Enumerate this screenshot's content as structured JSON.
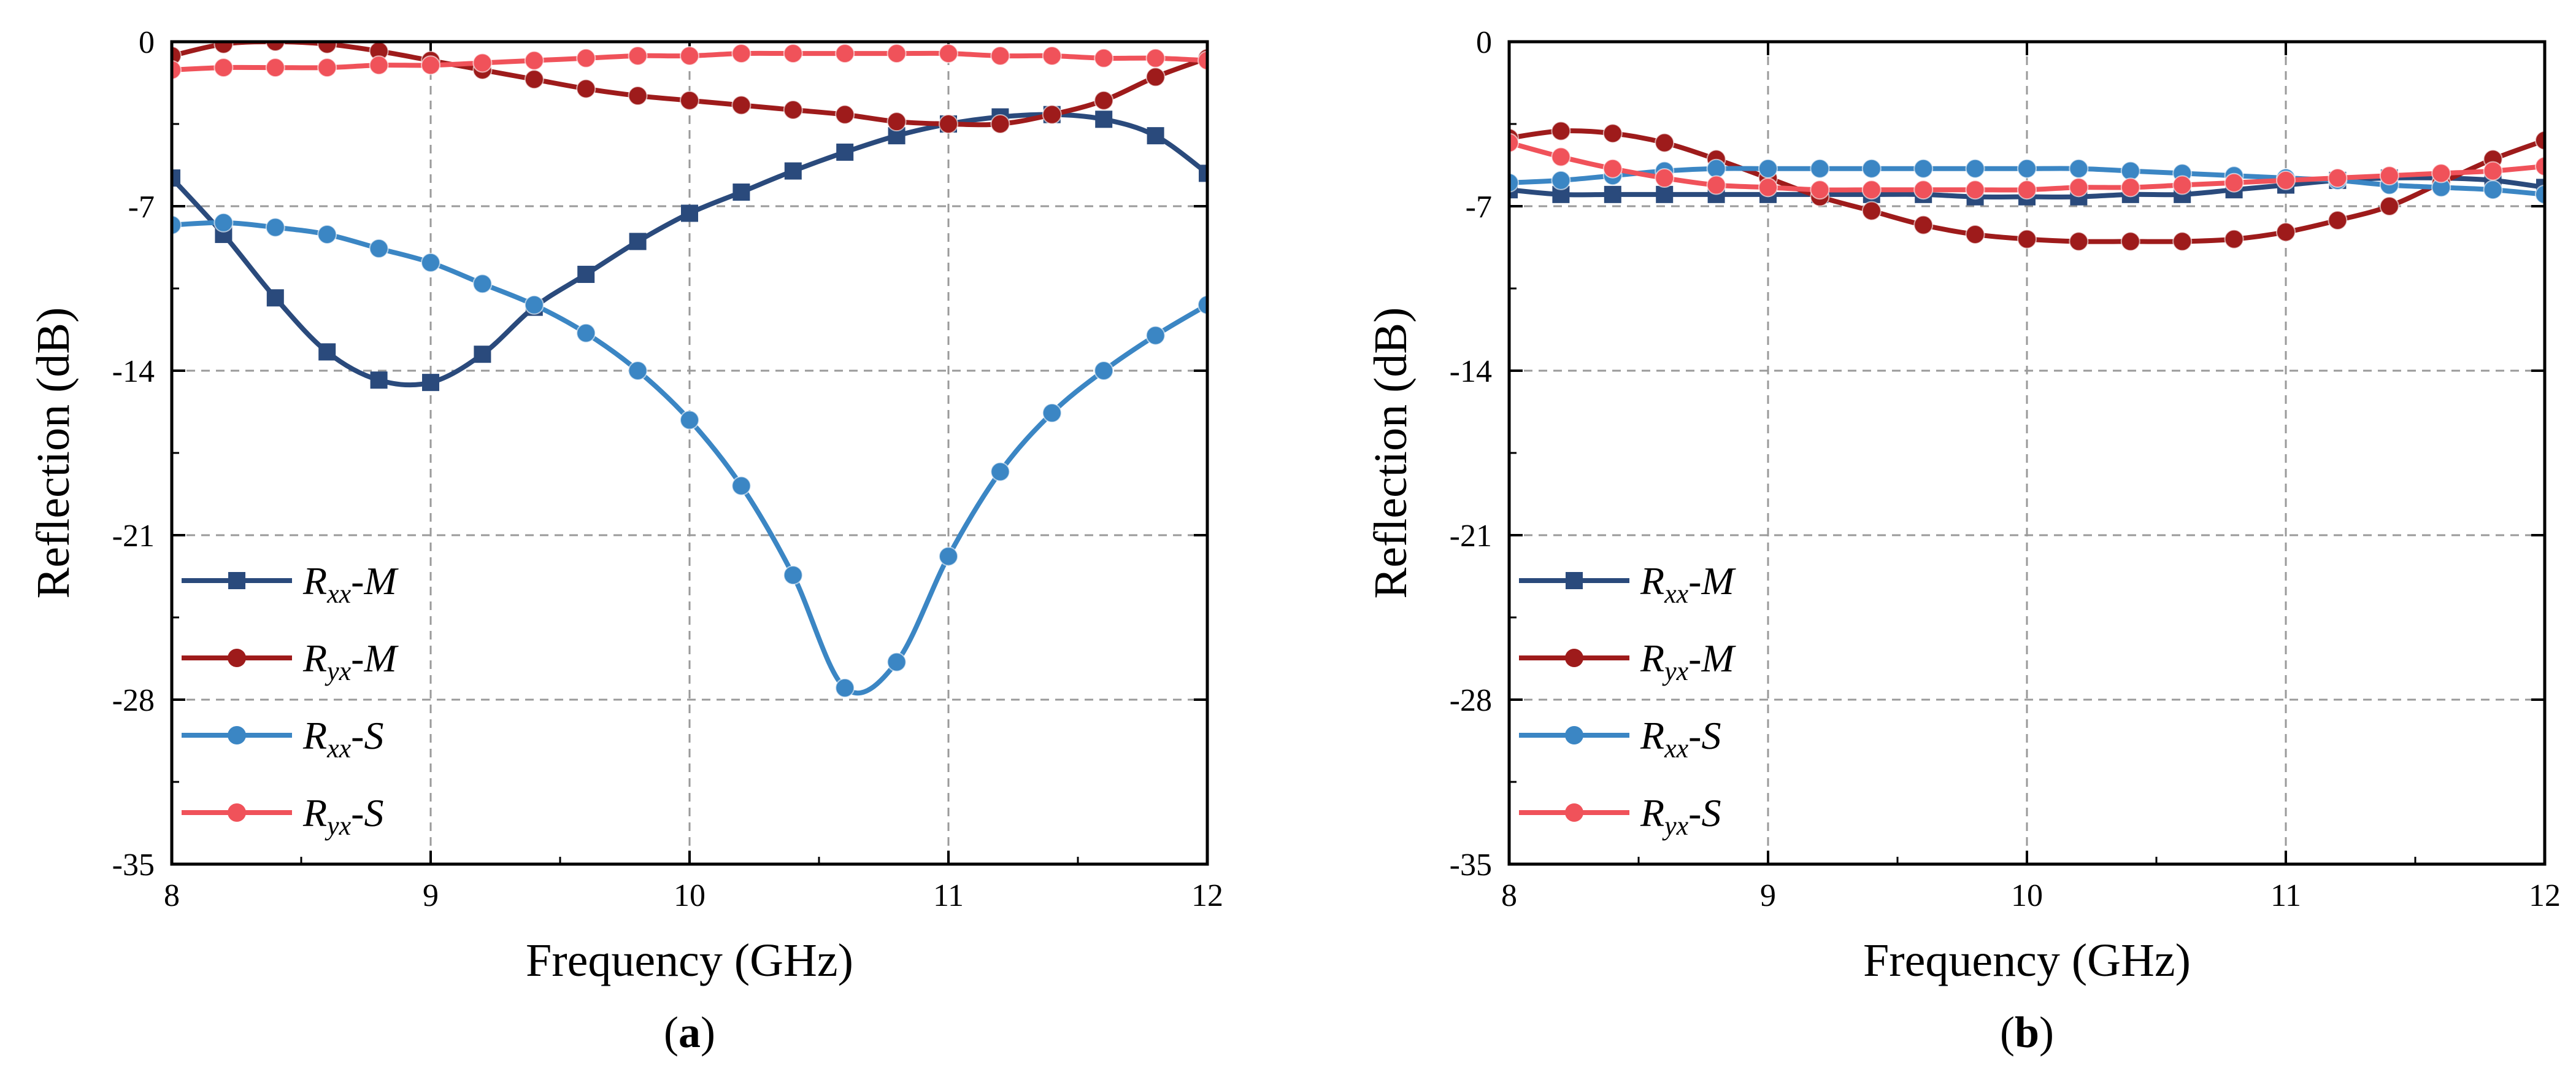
{
  "chart_data": [
    {
      "type": "line",
      "panel_label": "(a)",
      "panel_letter": "a",
      "xlabel": "Frequency (GHz)",
      "ylabel": "Reflection (dB)",
      "xlim": [
        8,
        12
      ],
      "ylim": [
        -35,
        0
      ],
      "xticks": [
        8,
        9,
        10,
        11,
        12
      ],
      "yticks": [
        0,
        -7,
        -14,
        -21,
        -28,
        -35
      ],
      "grid": true,
      "legend_position": "lower-left",
      "x": [
        8,
        8.2,
        8.4,
        8.6,
        8.8,
        9,
        9.2,
        9.4,
        9.6,
        9.8,
        10,
        10.2,
        10.4,
        10.6,
        10.8,
        11,
        11.2,
        11.4,
        11.6,
        11.8,
        12
      ],
      "series": [
        {
          "name": "Rxx-M",
          "base": "R",
          "sub": "xx",
          "suffix": "-M",
          "marker": "square",
          "color": "#2a4a7c",
          "values": [
            -5.8,
            -8.2,
            -10.9,
            -13.2,
            -14.4,
            -14.5,
            -13.3,
            -11.3,
            -9.9,
            -8.5,
            -7.3,
            -6.4,
            -5.5,
            -4.7,
            -4.0,
            -3.5,
            -3.2,
            -3.1,
            -3.3,
            -4.0,
            -5.6
          ]
        },
        {
          "name": "Ryx-M",
          "base": "R",
          "sub": "yx",
          "suffix": "-M",
          "marker": "circle",
          "color": "#9e1b1b",
          "values": [
            -0.6,
            -0.1,
            0,
            -0.1,
            -0.4,
            -0.8,
            -1.2,
            -1.6,
            -2.0,
            -2.3,
            -2.5,
            -2.7,
            -2.9,
            -3.1,
            -3.4,
            -3.5,
            -3.5,
            -3.1,
            -2.5,
            -1.5,
            -0.7
          ]
        },
        {
          "name": "Rxx-S",
          "base": "R",
          "sub": "xx",
          "suffix": "-S",
          "marker": "circle",
          "color": "#3b86c4",
          "values": [
            -7.8,
            -7.7,
            -7.9,
            -8.2,
            -8.8,
            -9.4,
            -10.3,
            -11.2,
            -12.4,
            -14.0,
            -16.1,
            -18.9,
            -22.7,
            -27.5,
            -26.4,
            -21.9,
            -18.3,
            -15.8,
            -14.0,
            -12.5,
            -11.2
          ]
        },
        {
          "name": "Ryx-S",
          "base": "R",
          "sub": "yx",
          "suffix": "-S",
          "marker": "circle",
          "color": "#f0525a",
          "values": [
            -1.2,
            -1.1,
            -1.1,
            -1.1,
            -1.0,
            -1.0,
            -0.9,
            -0.8,
            -0.7,
            -0.6,
            -0.6,
            -0.5,
            -0.5,
            -0.5,
            -0.5,
            -0.5,
            -0.6,
            -0.6,
            -0.7,
            -0.7,
            -0.8
          ]
        }
      ]
    },
    {
      "type": "line",
      "panel_label": "(b)",
      "panel_letter": "b",
      "xlabel": "Frequency (GHz)",
      "ylabel": "Reflection (dB)",
      "xlim": [
        8,
        12
      ],
      "ylim": [
        -35,
        0
      ],
      "xticks": [
        8,
        9,
        10,
        11,
        12
      ],
      "yticks": [
        0,
        -7,
        -14,
        -21,
        -28,
        -35
      ],
      "grid": true,
      "legend_position": "lower-left",
      "x": [
        8,
        8.2,
        8.4,
        8.6,
        8.8,
        9,
        9.2,
        9.4,
        9.6,
        9.8,
        10,
        10.2,
        10.4,
        10.6,
        10.8,
        11,
        11.2,
        11.4,
        11.6,
        11.8,
        12
      ],
      "series": [
        {
          "name": "Rxx-M",
          "base": "R",
          "sub": "xx",
          "suffix": "-M",
          "marker": "square",
          "color": "#2a4a7c",
          "values": [
            -6.3,
            -6.5,
            -6.5,
            -6.5,
            -6.5,
            -6.5,
            -6.5,
            -6.5,
            -6.5,
            -6.6,
            -6.6,
            -6.6,
            -6.5,
            -6.5,
            -6.3,
            -6.1,
            -5.9,
            -5.8,
            -5.8,
            -5.9,
            -6.2
          ]
        },
        {
          "name": "Ryx-M",
          "base": "R",
          "sub": "yx",
          "suffix": "-M",
          "marker": "circle",
          "color": "#9e1b1b",
          "values": [
            -4.1,
            -3.8,
            -3.9,
            -4.3,
            -5.0,
            -5.8,
            -6.6,
            -7.2,
            -7.8,
            -8.2,
            -8.4,
            -8.5,
            -8.5,
            -8.5,
            -8.4,
            -8.1,
            -7.6,
            -7.0,
            -6.0,
            -5.0,
            -4.2
          ]
        },
        {
          "name": "Rxx-S",
          "base": "R",
          "sub": "xx",
          "suffix": "-S",
          "marker": "circle",
          "color": "#3b86c4",
          "values": [
            -6.0,
            -5.9,
            -5.7,
            -5.5,
            -5.4,
            -5.4,
            -5.4,
            -5.4,
            -5.4,
            -5.4,
            -5.4,
            -5.4,
            -5.5,
            -5.6,
            -5.7,
            -5.8,
            -5.9,
            -6.1,
            -6.2,
            -6.3,
            -6.5
          ]
        },
        {
          "name": "Ryx-S",
          "base": "R",
          "sub": "yx",
          "suffix": "-S",
          "marker": "circle",
          "color": "#f0525a",
          "values": [
            -4.3,
            -4.9,
            -5.4,
            -5.8,
            -6.1,
            -6.2,
            -6.3,
            -6.3,
            -6.3,
            -6.3,
            -6.3,
            -6.2,
            -6.2,
            -6.1,
            -6.0,
            -5.9,
            -5.8,
            -5.7,
            -5.6,
            -5.5,
            -5.3
          ]
        }
      ]
    }
  ]
}
